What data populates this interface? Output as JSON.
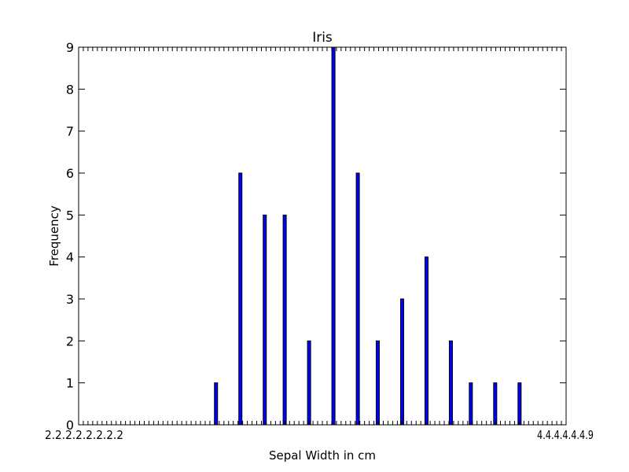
{
  "chart_data": {
    "type": "bar",
    "title": "Iris",
    "xlabel": "Sepal Width in cm",
    "ylabel": "Frequency",
    "ylim": [
      0,
      9
    ],
    "yticks": [
      "0",
      "1",
      "2",
      "3",
      "4",
      "5",
      "6",
      "7",
      "8",
      "9"
    ],
    "xlim": [
      2.2,
      4.4
    ],
    "x_tick_labels_left": "2.2.2.2.2.2.2.2",
    "x_tick_labels_right": "4.4.4.4.4.4.9",
    "x": [
      2.82,
      2.93,
      3.04,
      3.13,
      3.24,
      3.35,
      3.46,
      3.55,
      3.66,
      3.77,
      3.88,
      3.97,
      4.08,
      4.19
    ],
    "values": [
      1,
      6,
      5,
      5,
      2,
      9,
      6,
      2,
      3,
      4,
      2,
      1,
      1,
      1
    ],
    "bar_color": "#0000ff",
    "grid": false,
    "legend": "none"
  }
}
